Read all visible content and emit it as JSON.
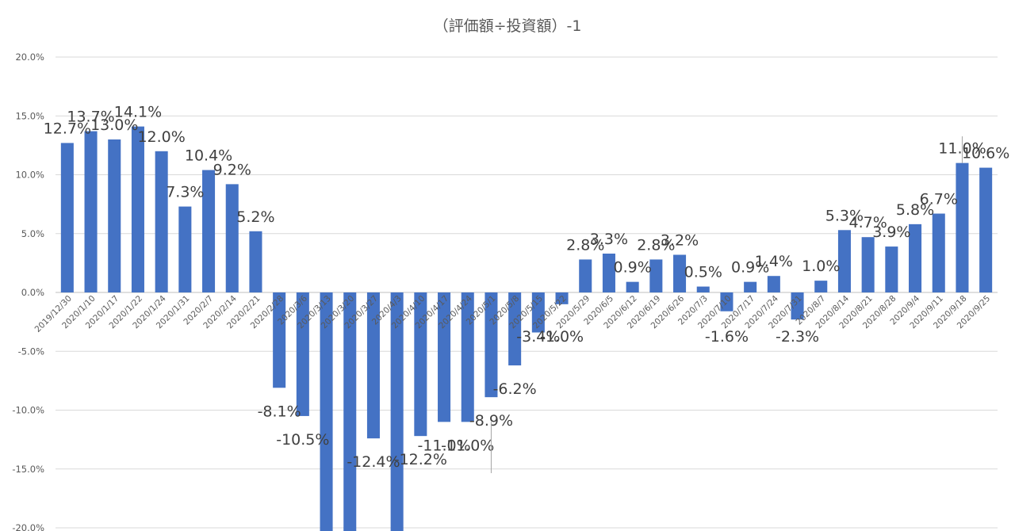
{
  "chart_data": {
    "type": "bar",
    "title": "（評価額÷投資額）-1",
    "xlabel": "",
    "ylabel": "",
    "ylim": [
      -20,
      20
    ],
    "yticks": [
      "20.0%",
      "15.0%",
      "10.0%",
      "5.0%",
      "0.0%",
      "-5.0%",
      "-10.0%",
      "-15.0%",
      "-20.0%"
    ],
    "ytick_values": [
      20,
      15,
      10,
      5,
      0,
      -5,
      -10,
      -15,
      -20
    ],
    "grid": true,
    "legend": "none",
    "bar_color": "#4472c4",
    "categories": [
      "2019/12/30",
      "2020/1/10",
      "2020/1/17",
      "2020/1/22",
      "2020/1/24",
      "2020/1/31",
      "2020/2/7",
      "2020/2/14",
      "2020/2/21",
      "2020/2/28",
      "2020/3/6",
      "2020/3/13",
      "2020/3/20",
      "2020/3/27",
      "2020/4/3",
      "2020/4/10",
      "2020/4/17",
      "2020/4/24",
      "2020/5/1",
      "2020/5/8",
      "2020/5/15",
      "2020/5/22",
      "2020/5/29",
      "2020/6/5",
      "2020/6/12",
      "2020/6/19",
      "2020/6/26",
      "2020/7/3",
      "2020/7/10",
      "2020/7/17",
      "2020/7/24",
      "2020/7/31",
      "2020/8/7",
      "2020/8/14",
      "2020/8/21",
      "2020/8/28",
      "2020/9/4",
      "2020/9/11",
      "2020/9/18",
      "2020/9/25"
    ],
    "values": [
      12.7,
      13.7,
      13.0,
      14.1,
      12.0,
      7.3,
      10.4,
      9.2,
      5.2,
      -8.1,
      -10.5,
      -22.0,
      -22.0,
      -12.4,
      -22.0,
      -12.2,
      -11.0,
      -11.0,
      -8.9,
      -6.2,
      -3.4,
      -1.0,
      2.8,
      3.3,
      0.9,
      2.8,
      3.2,
      0.5,
      -1.6,
      0.9,
      1.4,
      -2.3,
      1.0,
      5.3,
      4.7,
      3.9,
      5.8,
      6.7,
      11.0,
      10.6
    ],
    "data_labels": [
      "12.7%",
      "13.7%",
      "13.0%",
      "14.1%",
      "12.0%",
      "7.3%",
      "10.4%",
      "9.2%",
      "5.2%",
      "-8.1%",
      "-10.5%",
      "",
      "",
      "-12.4%",
      "",
      "-12.2%",
      "-11.0%",
      "-11.0%",
      "-8.9%",
      "-6.2%",
      "-3.4%",
      "-1.0%",
      "2.8%",
      "3.3%",
      "0.9%",
      "2.8%",
      "3.2%",
      "0.5%",
      "-1.6%",
      "0.9%",
      "1.4%",
      "-2.3%",
      "1.0%",
      "5.3%",
      "4.7%",
      "3.9%",
      "5.8%",
      "6.7%",
      "11.0%",
      "10.6%"
    ]
  }
}
